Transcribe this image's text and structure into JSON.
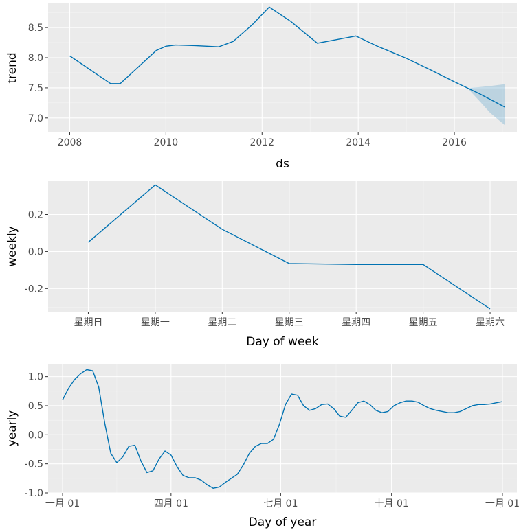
{
  "chart_data": [
    {
      "type": "line",
      "name": "trend",
      "xlabel": "ds",
      "ylabel": "trend",
      "xlim": [
        2007.55,
        2017.3
      ],
      "ylim": [
        6.77,
        8.9
      ],
      "x_major_ticks": [
        2008,
        2010,
        2012,
        2014,
        2016
      ],
      "x_tick_labels": [
        "2008",
        "2010",
        "2012",
        "2014",
        "2016"
      ],
      "x_minor_ticks": [
        2009,
        2011,
        2013,
        2015,
        2017
      ],
      "y_major_ticks": [
        7.0,
        7.5,
        8.0,
        8.5
      ],
      "y_tick_labels": [
        "7.0",
        "7.5",
        "8.0",
        "8.5"
      ],
      "y_minor_ticks": [
        7.25,
        7.75,
        8.25,
        8.75
      ],
      "series": [
        {
          "name": "trend",
          "x": [
            2008.0,
            2008.85,
            2009.05,
            2009.8,
            2010.0,
            2010.2,
            2010.6,
            2011.1,
            2011.4,
            2011.8,
            2012.15,
            2012.6,
            2013.15,
            2013.95,
            2014.4,
            2015.0,
            2015.5,
            2016.0,
            2016.5,
            2017.05
          ],
          "y": [
            8.03,
            7.57,
            7.57,
            8.12,
            8.19,
            8.21,
            8.2,
            8.18,
            8.27,
            8.55,
            8.84,
            8.6,
            8.24,
            8.36,
            8.19,
            7.99,
            7.8,
            7.6,
            7.41,
            7.18
          ]
        }
      ],
      "uncertainty_band": {
        "x": [
          2016.3,
          2016.5,
          2016.75,
          2017.05
        ],
        "lower": [
          7.47,
          7.3,
          7.08,
          6.88
        ],
        "upper": [
          7.5,
          7.51,
          7.53,
          7.56
        ]
      }
    },
    {
      "type": "line",
      "name": "weekly",
      "xlabel": "Day of week",
      "ylabel": "weekly",
      "xlim": [
        -0.6,
        6.4
      ],
      "ylim": [
        -0.325,
        0.38
      ],
      "categories": [
        "星期日",
        "星期一",
        "星期二",
        "星期三",
        "星期四",
        "星期五",
        "星期六"
      ],
      "y_major_ticks": [
        -0.2,
        0.0,
        0.2
      ],
      "y_tick_labels": [
        "-0.2",
        "0.0",
        "0.2"
      ],
      "y_minor_ticks": [
        -0.3,
        -0.1,
        0.1,
        0.3
      ],
      "series": [
        {
          "name": "weekly",
          "values": [
            0.05,
            0.36,
            0.12,
            -0.065,
            -0.07,
            -0.07,
            -0.31
          ]
        }
      ]
    },
    {
      "type": "line",
      "name": "yearly",
      "xlabel": "Day of year",
      "ylabel": "yearly",
      "xlim": [
        -12,
        377
      ],
      "ylim": [
        -1.0,
        1.22
      ],
      "x_major_ticks": [
        0,
        90,
        181,
        273,
        365
      ],
      "x_tick_labels": [
        "一月 01",
        "四月 01",
        "七月 01",
        "十月 01",
        "一月 01"
      ],
      "x_minor_ticks": [
        45,
        135.5,
        227,
        319
      ],
      "y_major_ticks": [
        -1.0,
        -0.5,
        0.0,
        0.5,
        1.0
      ],
      "y_tick_labels": [
        "-1.0",
        "-0.5",
        "0.0",
        "0.5",
        "1.0"
      ],
      "y_minor_ticks": [
        -0.75,
        -0.25,
        0.25,
        0.75
      ],
      "series": [
        {
          "name": "yearly",
          "x": [
            0,
            5,
            10,
            15,
            20,
            25,
            30,
            35,
            40,
            45,
            50,
            55,
            60,
            65,
            70,
            75,
            80,
            85,
            90,
            95,
            100,
            105,
            110,
            115,
            120,
            125,
            130,
            135,
            140,
            145,
            150,
            155,
            160,
            165,
            170,
            175,
            180,
            185,
            190,
            195,
            200,
            205,
            210,
            215,
            220,
            225,
            230,
            235,
            240,
            245,
            250,
            255,
            260,
            265,
            270,
            275,
            280,
            285,
            290,
            295,
            300,
            305,
            310,
            315,
            320,
            325,
            330,
            335,
            340,
            345,
            350,
            355,
            360,
            365
          ],
          "y": [
            0.6,
            0.8,
            0.95,
            1.05,
            1.12,
            1.1,
            0.82,
            0.2,
            -0.32,
            -0.48,
            -0.38,
            -0.2,
            -0.18,
            -0.45,
            -0.65,
            -0.62,
            -0.42,
            -0.28,
            -0.35,
            -0.55,
            -0.7,
            -0.74,
            -0.74,
            -0.78,
            -0.86,
            -0.92,
            -0.9,
            -0.82,
            -0.75,
            -0.68,
            -0.52,
            -0.32,
            -0.2,
            -0.15,
            -0.15,
            -0.08,
            0.18,
            0.52,
            0.7,
            0.68,
            0.5,
            0.42,
            0.45,
            0.52,
            0.53,
            0.45,
            0.32,
            0.3,
            0.42,
            0.55,
            0.58,
            0.52,
            0.42,
            0.38,
            0.4,
            0.5,
            0.55,
            0.58,
            0.58,
            0.56,
            0.5,
            0.45,
            0.42,
            0.4,
            0.38,
            0.38,
            0.4,
            0.45,
            0.5,
            0.52,
            0.52,
            0.53,
            0.55,
            0.57
          ]
        }
      ]
    }
  ]
}
